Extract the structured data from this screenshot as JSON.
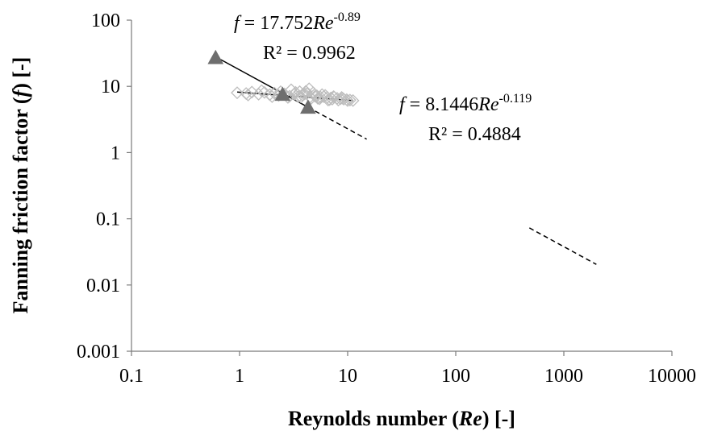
{
  "chart_data": {
    "type": "scatter",
    "x_scale": "log",
    "y_scale": "log",
    "xlim": [
      0.1,
      10000
    ],
    "ylim": [
      0.001,
      100
    ],
    "grid": false,
    "x_ticks": [
      "0.1",
      "1",
      "10",
      "100",
      "1000",
      "10000"
    ],
    "y_ticks": [
      "100",
      "10",
      "1",
      "0.1",
      "0.01",
      "0.001"
    ],
    "xlabel": {
      "pre": "Reynolds number (",
      "it": "Re",
      "post": ") [-]"
    },
    "ylabel": {
      "pre": "Fanning friction factor (",
      "it": "f",
      "post": ") [-]"
    },
    "series": [
      {
        "marker": "triangle",
        "color": "#6e6e6e",
        "x": [
          0.6,
          2.5,
          4.3
        ],
        "y": [
          27,
          7.5,
          4.8
        ]
      },
      {
        "marker": "diamond-open",
        "color": "#bdbdbd",
        "x": [
          0.95,
          1.15,
          1.3,
          1.5,
          1.7,
          1.9,
          2.1,
          2.3,
          2.6,
          2.9,
          3.2,
          3.5,
          3.8,
          4.1,
          4.4,
          4.8,
          5.2,
          5.6,
          6.0,
          6.5,
          7.0,
          7.5,
          8.0,
          8.6,
          9.2,
          9.8,
          10.5,
          11.2,
          1.2,
          1.6,
          2.0,
          2.4,
          2.8,
          3.3,
          3.7,
          4.2,
          4.6,
          5.0,
          5.5,
          6.2,
          6.8,
          7.4,
          8.2,
          9.0,
          10.0,
          3.0,
          3.6,
          4.0,
          4.5,
          5.3,
          5.8,
          6.6,
          7.2,
          8.8
        ],
        "y": [
          8.0,
          7.8,
          8.2,
          7.6,
          8.1,
          7.5,
          7.9,
          7.3,
          7.7,
          7.1,
          7.6,
          7.0,
          7.4,
          8.4,
          9.2,
          8.0,
          7.2,
          6.9,
          7.0,
          6.8,
          6.7,
          6.9,
          6.6,
          6.5,
          6.4,
          6.3,
          6.2,
          6.1,
          7.4,
          8.6,
          7.0,
          8.3,
          6.8,
          8.1,
          6.9,
          7.8,
          6.6,
          7.1,
          6.5,
          7.3,
          6.3,
          7.0,
          6.2,
          6.6,
          6.1,
          8.9,
          8.3,
          7.7,
          6.9,
          6.6,
          7.5,
          6.2,
          6.4,
          6.8
        ]
      }
    ],
    "trendlines": [
      {
        "a": 17.752,
        "b": -0.89,
        "x_range": [
          0.6,
          4.3
        ],
        "style": "solid"
      },
      {
        "a": 8.1446,
        "b": -0.119,
        "x_range": [
          0.95,
          11.2
        ],
        "style": "solid"
      },
      {
        "a": 17.752,
        "b": -0.89,
        "x_range": [
          4.3,
          15
        ],
        "style": "dashed"
      },
      {
        "a": 17.752,
        "b": -0.89,
        "x_range": [
          480,
          2000
        ],
        "style": "dashed"
      }
    ],
    "annotations": [
      {
        "f": "f",
        "eq": " = 17.752",
        "re": "Re",
        "exp": "-0.89",
        "r2": "R² = 0.9962"
      },
      {
        "f": "f",
        "eq": " = 8.1446",
        "re": "Re",
        "exp": "-0.119",
        "r2": "R² = 0.4884"
      }
    ]
  }
}
